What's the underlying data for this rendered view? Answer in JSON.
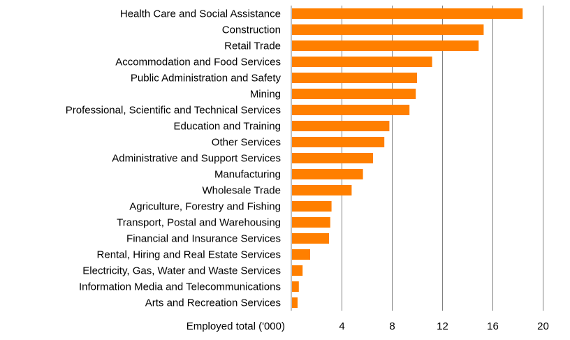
{
  "chart_data": {
    "type": "bar",
    "orientation": "horizontal",
    "categories": [
      "Health Care and Social Assistance",
      "Construction",
      "Retail Trade",
      "Accommodation and Food Services",
      "Public Administration and Safety",
      "Mining",
      "Professional, Scientific and Technical Services",
      "Education and Training",
      "Other Services",
      "Administrative and Support Services",
      "Manufacturing",
      "Wholesale Trade",
      "Agriculture, Forestry and Fishing",
      "Transport, Postal and Warehousing",
      "Financial and Insurance Services",
      "Rental, Hiring and Real Estate Services",
      "Electricity, Gas, Water and Waste Services",
      "Information Media and Telecommunications",
      "Arts and Recreation Services"
    ],
    "values": [
      18.4,
      15.3,
      14.9,
      11.2,
      10.0,
      9.9,
      9.4,
      7.8,
      7.4,
      6.5,
      5.7,
      4.8,
      3.2,
      3.1,
      3.0,
      1.5,
      0.9,
      0.6,
      0.5
    ],
    "xlim": [
      0,
      20
    ],
    "xticks": [
      4,
      8,
      12,
      16,
      20
    ],
    "xlabel": "Employed total ('000)",
    "title": "",
    "grid": "vertical",
    "bar_color": "#FF7F00",
    "grid_color": "#808080"
  }
}
